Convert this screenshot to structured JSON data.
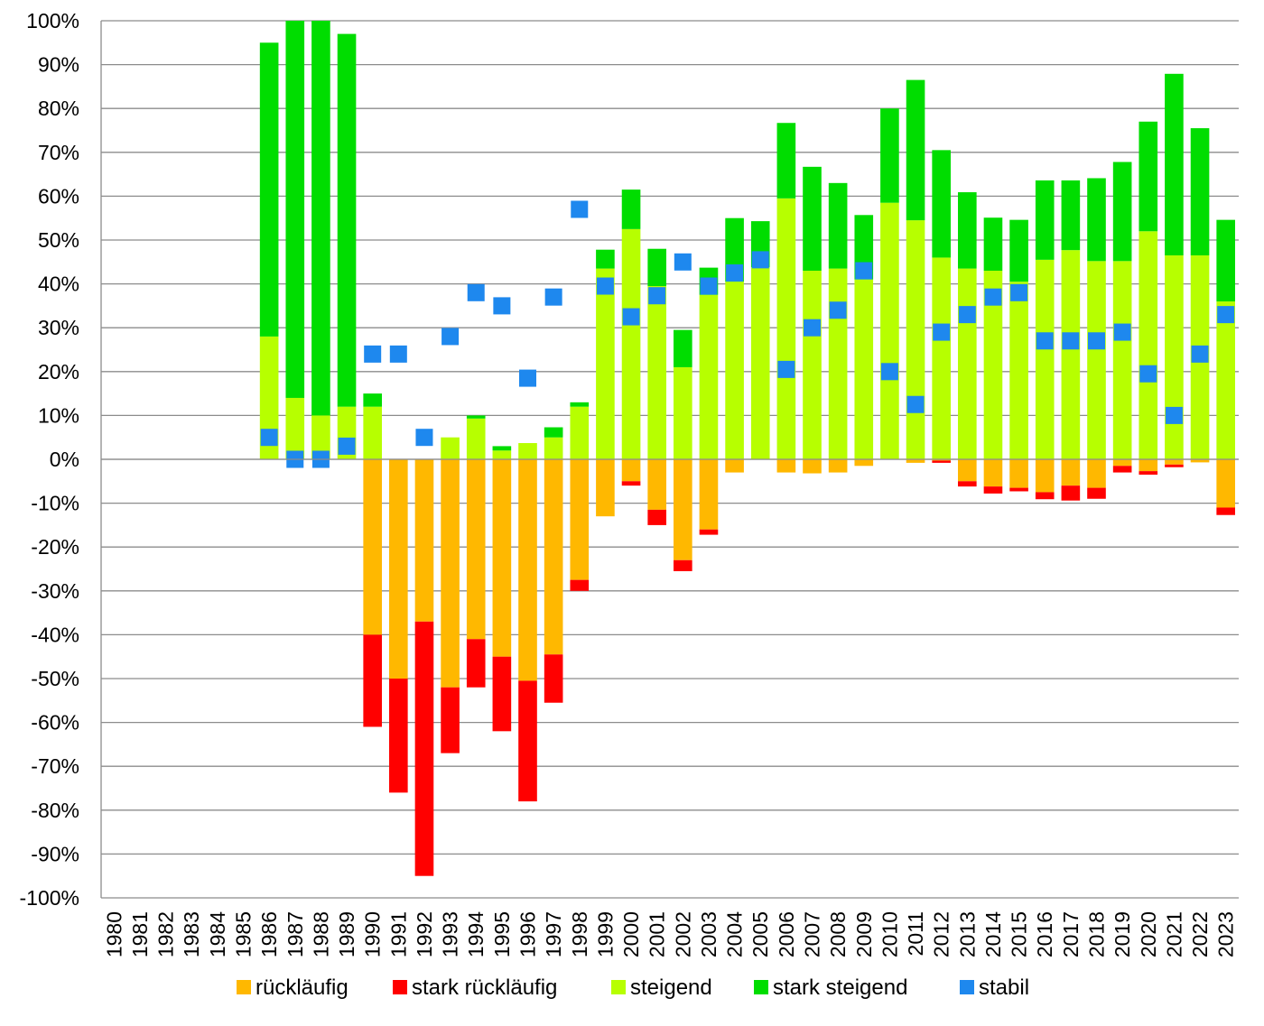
{
  "chart_data": {
    "type": "bar",
    "stacked": true,
    "title": "",
    "xlabel": "",
    "ylabel": "",
    "ylim": [
      -100,
      100
    ],
    "yticks": [
      100,
      90,
      80,
      70,
      60,
      50,
      40,
      30,
      20,
      10,
      0,
      -10,
      -20,
      -30,
      -40,
      -50,
      -60,
      -70,
      -80,
      -90,
      -100
    ],
    "ytick_labels": [
      "100%",
      "90%",
      "80%",
      "70%",
      "60%",
      "50%",
      "40%",
      "30%",
      "20%",
      "10%",
      "0%",
      "-10%",
      "-20%",
      "-30%",
      "-40%",
      "-50%",
      "-60%",
      "-70%",
      "-80%",
      "-90%",
      "-100%"
    ],
    "grid": true,
    "legend_position": "bottom",
    "categories": [
      "1980",
      "1981",
      "1982",
      "1983",
      "1984",
      "1985",
      "1986",
      "1987",
      "1988",
      "1989",
      "1990",
      "1991",
      "1992",
      "1993",
      "1994",
      "1995",
      "1996",
      "1997",
      "1998",
      "1999",
      "2000",
      "2001",
      "2002",
      "2003",
      "2004",
      "2005",
      "2006",
      "2007",
      "2008",
      "2009",
      "2010",
      "2011",
      "2012",
      "2013",
      "2014",
      "2015",
      "2016",
      "2017",
      "2018",
      "2019",
      "2020",
      "2021",
      "2022",
      "2023"
    ],
    "series": [
      {
        "name": "rückläufig",
        "color": "#FFB800",
        "direction": "negative",
        "values": [
          0,
          0,
          0,
          0,
          0,
          0,
          0,
          0,
          0,
          0,
          -40,
          -50,
          -37,
          -52,
          -41,
          -45,
          -50.5,
          -44.5,
          -27.5,
          -13,
          -5,
          -11.5,
          -23,
          -16,
          -3,
          0,
          -3,
          -3.2,
          -3,
          -1.5,
          0,
          -0.8,
          -0.3,
          -5,
          -6.2,
          -6.5,
          -7.5,
          -6,
          -6.5,
          -1.5,
          -2.7,
          -1.2,
          -0.7,
          -11
        ]
      },
      {
        "name": "stark rückläufig",
        "color": "#FF0000",
        "direction": "negative",
        "values": [
          0,
          0,
          0,
          0,
          0,
          0,
          0,
          0,
          0,
          0,
          -21,
          -26,
          -58,
          -15,
          -11,
          -17,
          -27.5,
          -11,
          -2.5,
          0,
          -1,
          -3.5,
          -2.5,
          -1.2,
          0,
          0,
          0,
          0,
          0,
          0,
          0,
          0,
          -0.5,
          -1.2,
          -1.6,
          -0.8,
          -1.6,
          -3.4,
          -2.5,
          -1.5,
          -0.8,
          -0.6,
          0,
          -1.7
        ]
      },
      {
        "name": "steigend",
        "color": "#B7FF00",
        "direction": "positive",
        "values": [
          0,
          0,
          0,
          0,
          0,
          0,
          28,
          14,
          10,
          12,
          12,
          0,
          0,
          5,
          9.3,
          2,
          3.7,
          5,
          12,
          43.5,
          52.5,
          39.5,
          21,
          37.5,
          40.5,
          43.8,
          59.5,
          43,
          43.5,
          41,
          58.5,
          54.5,
          46,
          43.5,
          43,
          40.5,
          45.5,
          47.7,
          45.2,
          45.2,
          52,
          46.5,
          46.5,
          36
        ]
      },
      {
        "name": "stark steigend",
        "color": "#00DD00",
        "direction": "positive",
        "values": [
          0,
          0,
          0,
          0,
          0,
          0,
          67,
          86,
          90,
          85,
          3,
          0,
          0,
          0,
          0.7,
          1,
          0,
          2.3,
          1,
          4.3,
          9,
          8.5,
          8.5,
          6.2,
          14.5,
          10.5,
          17.2,
          23.7,
          19.5,
          14.7,
          21.5,
          32,
          24.5,
          17.4,
          12.1,
          14.1,
          18.1,
          15.9,
          18.9,
          22.6,
          25,
          41.4,
          29,
          18.6
        ]
      },
      {
        "name": "stabil",
        "color": "#1E88EE",
        "type": "marker",
        "values": [
          null,
          null,
          null,
          null,
          null,
          null,
          5,
          0,
          0,
          3,
          24,
          24,
          5,
          28,
          38,
          35,
          18.5,
          37,
          57,
          39.5,
          32.5,
          37.3,
          45,
          39.5,
          42.5,
          45.5,
          20.5,
          30,
          34,
          43,
          20,
          12.5,
          29,
          33,
          37,
          38,
          27,
          27,
          27,
          29,
          19.5,
          10,
          24,
          33
        ]
      }
    ]
  }
}
